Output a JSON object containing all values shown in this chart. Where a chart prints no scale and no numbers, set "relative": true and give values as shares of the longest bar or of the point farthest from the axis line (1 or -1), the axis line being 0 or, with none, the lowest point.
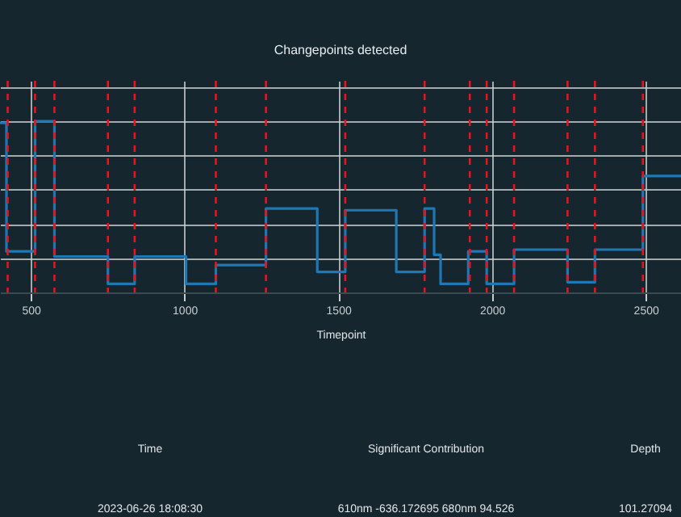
{
  "chart_data": {
    "type": "step",
    "title": "Changepoints detected",
    "xlabel": "Timepoint",
    "relative": true,
    "xlim": [
      400,
      2615
    ],
    "xticks": [
      500,
      1000,
      1500,
      2000,
      2500
    ],
    "grid": true,
    "line_style": "solid",
    "series": [
      {
        "color": "#1f77b4",
        "x": [
          400,
          421,
          514,
          577,
          751,
          838,
          1005,
          1102,
          1265,
          1432,
          1523,
          1689,
          1781,
          1812,
          1833,
          1923,
          1983,
          2072,
          2246,
          2335,
          2491,
          2615
        ],
        "values": [
          0.99,
          0.24,
          1.0,
          0.21,
          0.05,
          0.21,
          0.05,
          0.16,
          0.49,
          0.12,
          0.48,
          0.12,
          0.49,
          0.22,
          0.05,
          0.24,
          0.05,
          0.25,
          0.06,
          0.25,
          0.68,
          0.68
        ]
      }
    ],
    "ref_lines": [
      {
        "axis": "x",
        "value": 425,
        "color": "#e8141b",
        "line_style": "dashed"
      },
      {
        "axis": "x",
        "value": 514,
        "color": "#e8141b",
        "line_style": "dashed"
      },
      {
        "axis": "x",
        "value": 577,
        "color": "#e8141b",
        "line_style": "dashed"
      },
      {
        "axis": "x",
        "value": 751,
        "color": "#e8141b",
        "line_style": "dashed"
      },
      {
        "axis": "x",
        "value": 838,
        "color": "#e8141b",
        "line_style": "dashed"
      },
      {
        "axis": "x",
        "value": 1102,
        "color": "#e8141b",
        "line_style": "dashed"
      },
      {
        "axis": "x",
        "value": 1265,
        "color": "#e8141b",
        "line_style": "dashed"
      },
      {
        "axis": "x",
        "value": 1523,
        "color": "#e8141b",
        "line_style": "dashed"
      },
      {
        "axis": "x",
        "value": 1781,
        "color": "#e8141b",
        "line_style": "dashed"
      },
      {
        "axis": "x",
        "value": 1928,
        "color": "#e8141b",
        "line_style": "dashed"
      },
      {
        "axis": "x",
        "value": 1983,
        "color": "#e8141b",
        "line_style": "dashed"
      },
      {
        "axis": "x",
        "value": 2072,
        "color": "#e8141b",
        "line_style": "dashed"
      },
      {
        "axis": "x",
        "value": 2246,
        "color": "#e8141b",
        "line_style": "dashed"
      },
      {
        "axis": "x",
        "value": 2335,
        "color": "#e8141b",
        "line_style": "dashed"
      },
      {
        "axis": "x",
        "value": 2491,
        "color": "#e8141b",
        "line_style": "dashed"
      }
    ],
    "annotations": [
      "Time",
      "Significant Contribution",
      "Depth",
      "2023-06-26 18:08:30",
      "610nm -636.172695 680nm 94.526",
      "101.27094"
    ]
  }
}
